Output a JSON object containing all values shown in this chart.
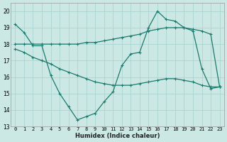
{
  "xlabel": "Humidex (Indice chaleur)",
  "background_color": "#cce8e4",
  "grid_color": "#aad4d0",
  "line_color": "#1a7a6e",
  "xlim": [
    -0.5,
    23.5
  ],
  "ylim": [
    13,
    20.5
  ],
  "yticks": [
    13,
    14,
    15,
    16,
    17,
    18,
    19,
    20
  ],
  "xticks": [
    0,
    1,
    2,
    3,
    4,
    5,
    6,
    7,
    8,
    9,
    10,
    11,
    12,
    13,
    14,
    15,
    16,
    17,
    18,
    19,
    20,
    21,
    22,
    23
  ],
  "xtick_labels": [
    "0",
    "1",
    "2",
    "3",
    "4",
    "5",
    "6",
    "7",
    "8",
    "9",
    "10",
    "11",
    "12",
    "13",
    "14",
    "15",
    "16",
    "17",
    "18",
    "19",
    "20",
    "21",
    "22",
    "23"
  ],
  "series": [
    {
      "x": [
        0,
        1,
        2,
        3,
        4,
        5,
        6,
        7,
        8,
        9,
        10,
        11,
        12,
        13,
        14,
        15,
        16,
        17,
        18,
        19,
        20,
        21,
        22,
        23
      ],
      "y": [
        19.2,
        18.7,
        17.9,
        17.9,
        16.1,
        15.0,
        14.2,
        13.4,
        13.6,
        13.8,
        14.5,
        15.1,
        16.7,
        17.4,
        17.5,
        19.0,
        20.0,
        19.5,
        19.4,
        19.0,
        18.8,
        16.5,
        15.3,
        15.4
      ]
    },
    {
      "x": [
        0,
        1,
        2,
        3,
        4,
        5,
        6,
        7,
        8,
        9,
        10,
        11,
        12,
        13,
        14,
        15,
        16,
        17,
        18,
        19,
        20,
        21,
        22,
        23
      ],
      "y": [
        18.0,
        18.0,
        18.0,
        18.0,
        18.0,
        18.0,
        18.0,
        18.0,
        18.1,
        18.1,
        18.2,
        18.3,
        18.4,
        18.5,
        18.6,
        18.8,
        18.9,
        19.0,
        19.0,
        19.0,
        18.9,
        18.8,
        18.6,
        15.4
      ]
    },
    {
      "x": [
        0,
        1,
        2,
        3,
        4,
        5,
        6,
        7,
        8,
        9,
        10,
        11,
        12,
        13,
        14,
        15,
        16,
        17,
        18,
        19,
        20,
        21,
        22,
        23
      ],
      "y": [
        17.7,
        17.5,
        17.2,
        17.0,
        16.8,
        16.5,
        16.3,
        16.1,
        15.9,
        15.7,
        15.6,
        15.5,
        15.5,
        15.5,
        15.6,
        15.7,
        15.8,
        15.9,
        15.9,
        15.8,
        15.7,
        15.5,
        15.4,
        15.4
      ]
    }
  ]
}
